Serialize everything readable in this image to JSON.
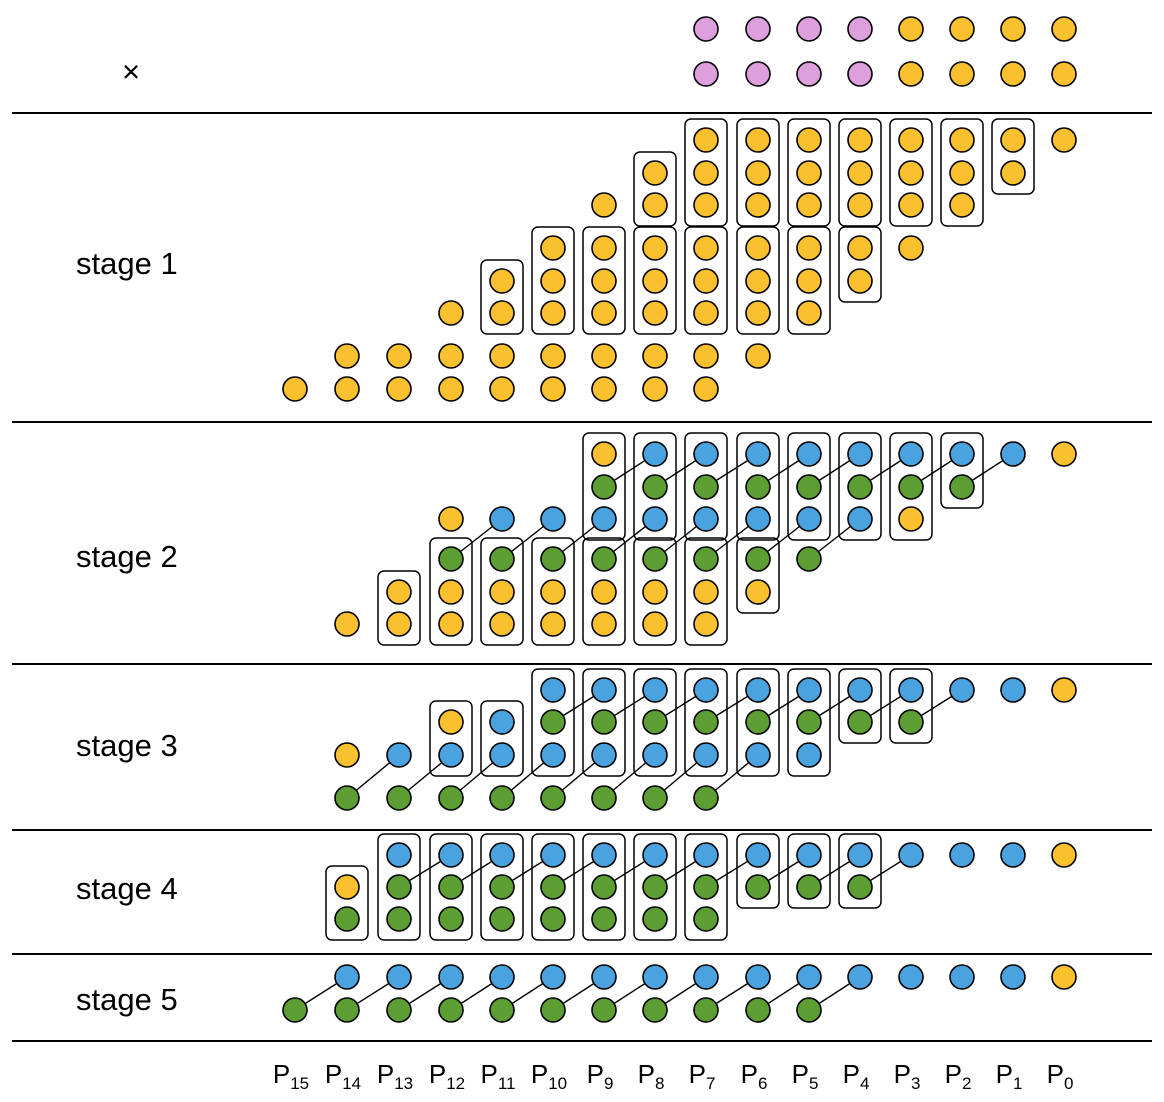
{
  "operator": "×",
  "stages": [
    "stage 1",
    "stage 2",
    "stage 3",
    "stage 4",
    "stage 5"
  ],
  "columns": [
    {
      "letter": "P",
      "sub": "15"
    },
    {
      "letter": "P",
      "sub": "14"
    },
    {
      "letter": "P",
      "sub": "13"
    },
    {
      "letter": "P",
      "sub": "12"
    },
    {
      "letter": "P",
      "sub": "11"
    },
    {
      "letter": "P",
      "sub": "10"
    },
    {
      "letter": "P",
      "sub": "9"
    },
    {
      "letter": "P",
      "sub": "8"
    },
    {
      "letter": "P",
      "sub": "7"
    },
    {
      "letter": "P",
      "sub": "6"
    },
    {
      "letter": "P",
      "sub": "5"
    },
    {
      "letter": "P",
      "sub": "4"
    },
    {
      "letter": "P",
      "sub": "3"
    },
    {
      "letter": "P",
      "sub": "2"
    },
    {
      "letter": "P",
      "sub": "1"
    },
    {
      "letter": "P",
      "sub": "0"
    }
  ],
  "colors": {
    "pink": "#DDA0DD",
    "yellow": "#FBC02D",
    "blue": "#4AA3DF",
    "green": "#5C9E31",
    "stroke": "#000000"
  },
  "operands": {
    "row_a": [
      "pink",
      "pink",
      "pink",
      "pink",
      "yellow",
      "yellow",
      "yellow",
      "yellow"
    ],
    "row_b": [
      "pink",
      "pink",
      "pink",
      "pink",
      "yellow",
      "yellow",
      "yellow",
      "yellow"
    ]
  }
}
